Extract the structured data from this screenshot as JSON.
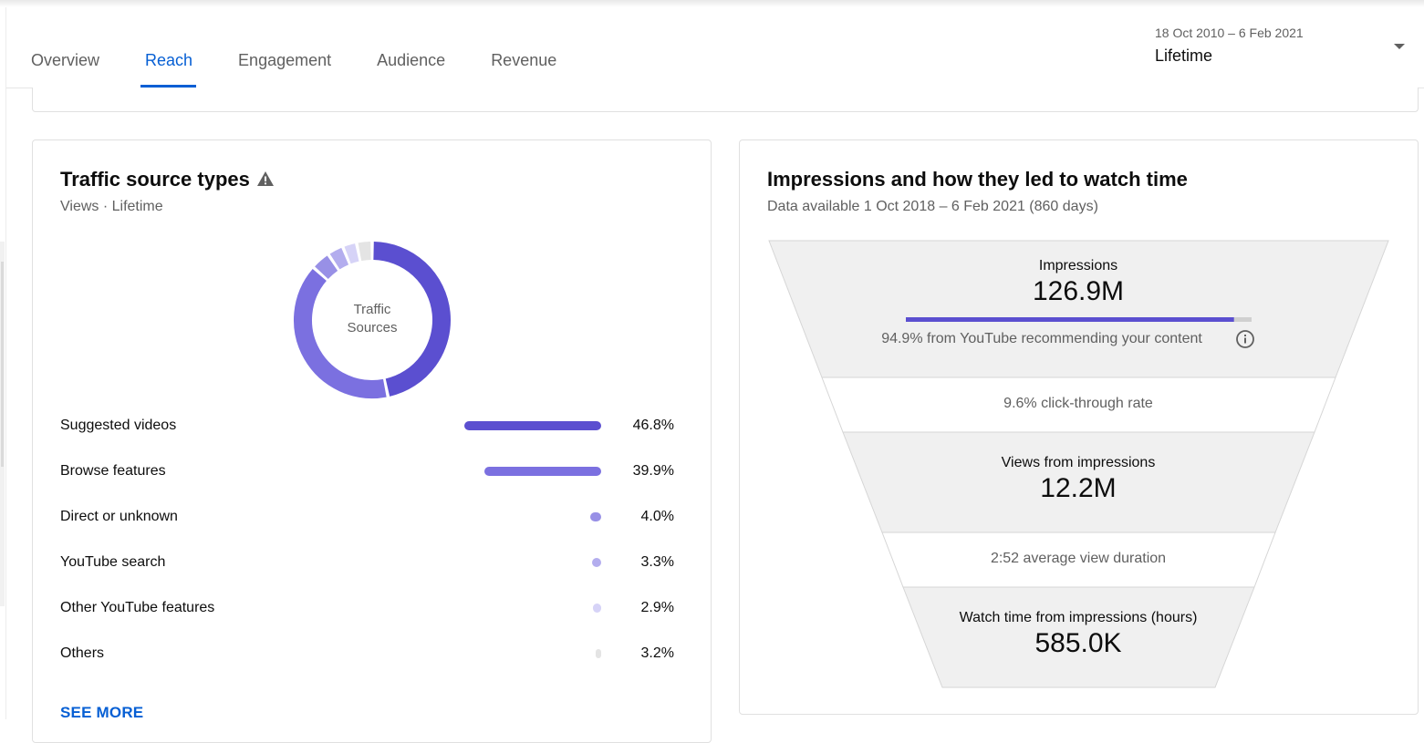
{
  "tabs": [
    {
      "label": "Overview",
      "active": false
    },
    {
      "label": "Reach",
      "active": true
    },
    {
      "label": "Engagement",
      "active": false
    },
    {
      "label": "Audience",
      "active": false
    },
    {
      "label": "Revenue",
      "active": false
    }
  ],
  "date_selector": {
    "range": "18 Oct 2010 – 6 Feb 2021",
    "period": "Lifetime",
    "icon": "caret-down-icon"
  },
  "traffic_card": {
    "title": "Traffic source types",
    "warning_icon": "warning-icon",
    "subtitle": "Views · Lifetime",
    "donut_label_line1": "Traffic",
    "donut_label_line2": "Sources",
    "sources": [
      {
        "label": "Suggested videos",
        "value": "46.8%",
        "percent": 46.8,
        "color": "#5b4fd0"
      },
      {
        "label": "Browse features",
        "value": "39.9%",
        "percent": 39.9,
        "color": "#7b70e0"
      },
      {
        "label": "Direct or unknown",
        "value": "4.0%",
        "percent": 4.0,
        "color": "#9890e6"
      },
      {
        "label": "YouTube search",
        "value": "3.3%",
        "percent": 3.3,
        "color": "#b3adee"
      },
      {
        "label": "Other YouTube features",
        "value": "2.9%",
        "percent": 2.9,
        "color": "#d6d3f7"
      },
      {
        "label": "Others",
        "value": "3.2%",
        "percent": 3.2,
        "color": "#e4e4e4"
      }
    ],
    "see_more": "SEE MORE"
  },
  "impressions_card": {
    "title": "Impressions and how they led to watch time",
    "subtitle": "Data available 1 Oct 2018 – 6 Feb 2021 (860 days)",
    "impressions_label": "Impressions",
    "impressions_value": "126.9M",
    "recommended_percent": 94.9,
    "recommended_note": "94.9% from YouTube recommending your content",
    "info_icon": "info-icon",
    "ctr_note": "9.6% click-through rate",
    "views_label": "Views from impressions",
    "views_value": "12.2M",
    "avg_duration_note": "2:52 average view duration",
    "watch_label": "Watch time from impressions (hours)",
    "watch_value": "585.0K"
  },
  "colors": {
    "accent": "#065fd4",
    "funnel_fill": "#f0f0f0",
    "primary_purple": "#5b4fd0"
  }
}
